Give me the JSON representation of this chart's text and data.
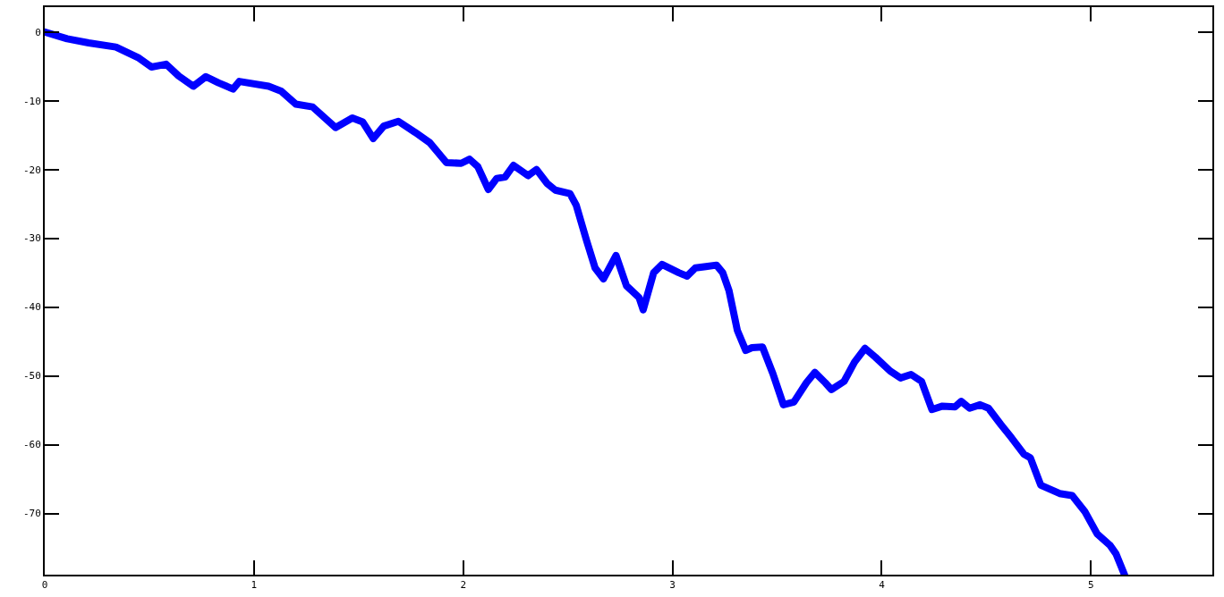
{
  "chart_data": {
    "type": "line",
    "x": [
      0,
      0.107,
      0.21,
      0.34,
      0.45,
      0.51,
      0.58,
      0.64,
      0.71,
      0.77,
      0.83,
      0.9,
      0.93,
      1.07,
      1.13,
      1.2,
      1.28,
      1.39,
      1.47,
      1.52,
      1.57,
      1.62,
      1.69,
      1.77,
      1.84,
      1.92,
      1.99,
      2.03,
      2.07,
      2.12,
      2.16,
      2.2,
      2.24,
      2.31,
      2.35,
      2.4,
      2.44,
      2.51,
      2.54,
      2.59,
      2.63,
      2.67,
      2.73,
      2.78,
      2.84,
      2.86,
      2.91,
      2.95,
      3.03,
      3.07,
      3.11,
      3.16,
      3.21,
      3.24,
      3.27,
      3.31,
      3.35,
      3.38,
      3.43,
      3.48,
      3.53,
      3.58,
      3.64,
      3.68,
      3.73,
      3.76,
      3.82,
      3.87,
      3.92,
      3.97,
      4.04,
      4.09,
      4.14,
      4.19,
      4.24,
      4.29,
      4.35,
      4.38,
      4.42,
      4.47,
      4.51,
      4.57,
      4.62,
      4.68,
      4.71,
      4.76,
      4.85,
      4.91,
      4.97,
      5.03,
      5.09,
      5.12,
      5.16
    ],
    "series": [
      {
        "color": "#0000ff",
        "values": [
          0,
          -1,
          -1.6,
          -2.2,
          -3.8,
          -5.1,
          -4.7,
          -6.4,
          -7.9,
          -6.5,
          -7.4,
          -8.3,
          -7.2,
          -7.9,
          -8.6,
          -10.5,
          -10.9,
          -13.9,
          -12.5,
          -13.1,
          -15.5,
          -13.7,
          -13,
          -14.6,
          -16.1,
          -19,
          -19.1,
          -18.5,
          -19.6,
          -22.9,
          -21.3,
          -21.1,
          -19.4,
          -20.9,
          -20,
          -22,
          -23,
          -23.5,
          -25.2,
          -30.4,
          -34.3,
          -35.9,
          -32.5,
          -36.9,
          -38.6,
          -40.4,
          -35,
          -33.8,
          -35,
          -35.5,
          -34.3,
          -34.1,
          -33.9,
          -35,
          -37.6,
          -43.4,
          -46.3,
          -45.9,
          -45.8,
          -49.7,
          -54.2,
          -53.8,
          -51,
          -49.5,
          -51,
          -52,
          -50.8,
          -48,
          -46,
          -47.3,
          -49.3,
          -50.3,
          -49.8,
          -50.8,
          -54.9,
          -54.4,
          -54.5,
          -53.7,
          -54.7,
          -54.2,
          -54.7,
          -57.1,
          -59,
          -61.4,
          -61.9,
          -65.9,
          -67.1,
          -67.4,
          -69.7,
          -73,
          -74.6,
          -75.9,
          -78.9
        ]
      }
    ],
    "xlim": [
      0,
      5.58
    ],
    "xticks": [
      0,
      1,
      2,
      3,
      4,
      5
    ],
    "ylim": [
      -78.9,
      3.6
    ],
    "yticks": [
      0,
      -10,
      -20,
      -30,
      -40,
      -50,
      -60,
      -70
    ],
    "grid": false,
    "marker": "none",
    "line_style": "solid"
  }
}
